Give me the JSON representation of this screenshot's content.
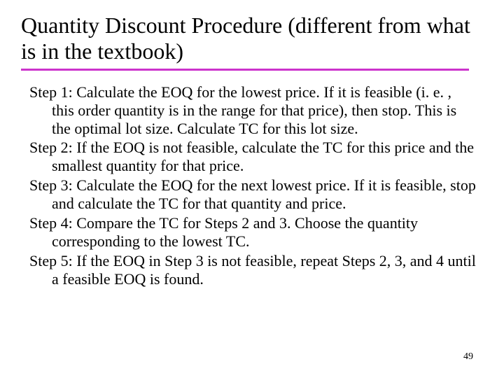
{
  "title": "Quantity Discount Procedure (different from what is in the textbook)",
  "rule_color": "#cc33cc",
  "steps": [
    "Step 1:  Calculate the EOQ for the lowest price.  If it is feasible (i. e. , this order quantity is in the range for that price), then stop.  This is the optimal lot size.  Calculate TC for this lot size.",
    "Step 2:  If the EOQ is not feasible, calculate the TC for this price and the smallest quantity for that price.",
    "Step 3:  Calculate the EOQ for the next lowest price.  If it is feasible, stop and calculate the TC for that quantity and price.",
    "Step 4:  Compare the TC for Steps 2 and 3.  Choose the quantity corresponding to the lowest TC.",
    "Step 5:  If the EOQ in Step 3 is not feasible, repeat Steps 2, 3, and 4 until a feasible EOQ is found."
  ],
  "page_number": "49",
  "title_fontsize": 32,
  "body_fontsize": 22,
  "background_color": "#ffffff",
  "text_color": "#000000"
}
